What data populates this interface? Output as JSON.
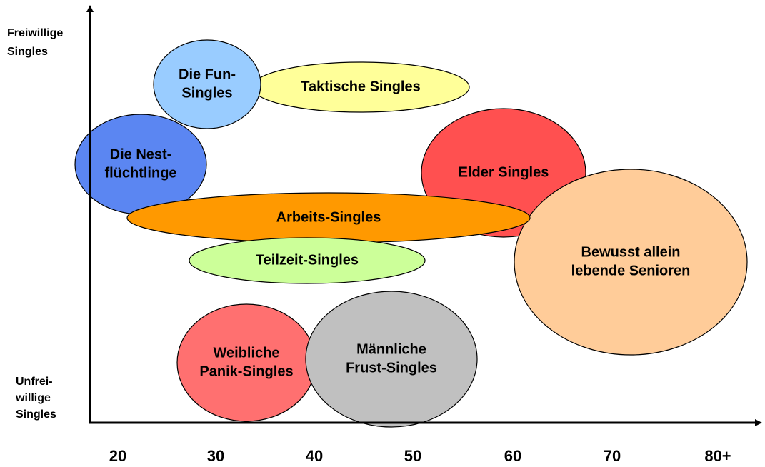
{
  "y_axis": {
    "top": [
      "Freiwillige",
      "Singles"
    ],
    "bottom": [
      "Unfrei-",
      "willige",
      "Singles"
    ]
  },
  "x_axis": {
    "labels": [
      "20",
      "30",
      "40",
      "50",
      "60",
      "70",
      "80+"
    ]
  },
  "nodes": [
    {
      "label": [
        "Taktische Singles"
      ]
    },
    {
      "label": [
        "Die Fun-",
        "Singles"
      ]
    },
    {
      "label": [
        "Die Nest-",
        "flüchtlinge"
      ]
    },
    {
      "label": [
        "Elder Singles"
      ]
    },
    {
      "label": [
        "Bewusst allein",
        "lebende Senioren"
      ]
    },
    {
      "label": [
        "Arbeits-Singles"
      ]
    },
    {
      "label": [
        "Teilzeit-Singles"
      ]
    },
    {
      "label": [
        "Weibliche",
        "Panik-Singles"
      ]
    },
    {
      "label": [
        "Männliche",
        "Frust-Singles"
      ]
    }
  ]
}
